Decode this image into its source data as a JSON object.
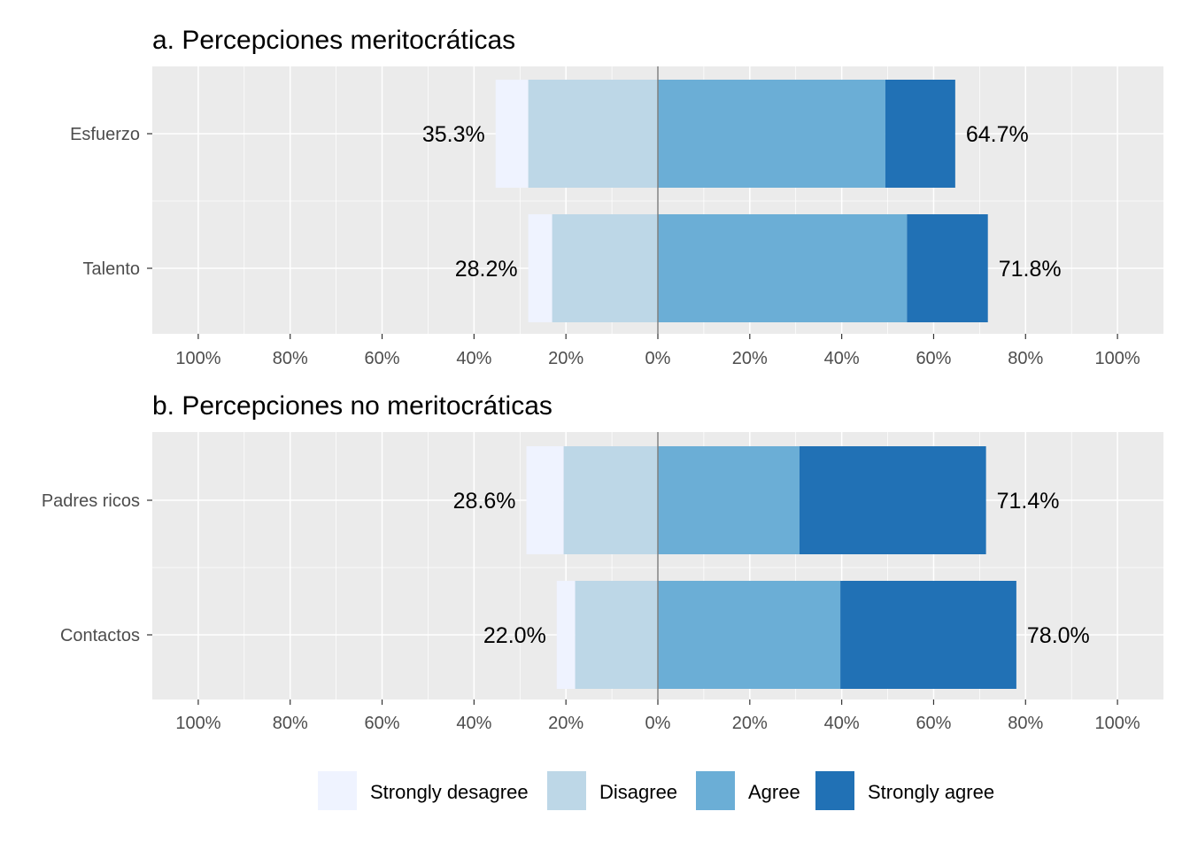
{
  "chart_data": [
    {
      "type": "bar",
      "orientation": "horizontal-diverging",
      "title": "a. Percepciones meritocráticas",
      "categories": [
        "Esfuerzo",
        "Talento"
      ],
      "xlim": [
        -110,
        110
      ],
      "x_ticks": [
        "100%",
        "80%",
        "60%",
        "40%",
        "20%",
        "0%",
        "20%",
        "40%",
        "60%",
        "80%",
        "100%"
      ],
      "series": [
        {
          "name": "Strongly desagree",
          "values": [
            7.1,
            5.2
          ]
        },
        {
          "name": "Disagree",
          "values": [
            28.2,
            23.0
          ]
        },
        {
          "name": "Agree",
          "values": [
            49.5,
            54.2
          ]
        },
        {
          "name": "Strongly agree",
          "values": [
            15.2,
            17.6
          ]
        }
      ],
      "negative_totals": [
        "35.3%",
        "28.2%"
      ],
      "positive_totals": [
        "64.7%",
        "71.8%"
      ]
    },
    {
      "type": "bar",
      "orientation": "horizontal-diverging",
      "title": "b. Percepciones no meritocráticas",
      "categories": [
        "Padres ricos",
        "Contactos"
      ],
      "xlim": [
        -110,
        110
      ],
      "x_ticks": [
        "100%",
        "80%",
        "60%",
        "40%",
        "20%",
        "0%",
        "20%",
        "40%",
        "60%",
        "80%",
        "100%"
      ],
      "series": [
        {
          "name": "Strongly desagree",
          "values": [
            8.1,
            4.0
          ]
        },
        {
          "name": "Disagree",
          "values": [
            20.5,
            18.0
          ]
        },
        {
          "name": "Agree",
          "values": [
            30.8,
            39.7
          ]
        },
        {
          "name": "Strongly agree",
          "values": [
            40.6,
            38.3
          ]
        }
      ],
      "negative_totals": [
        "28.6%",
        "22.0%"
      ],
      "positive_totals": [
        "71.4%",
        "78.0%"
      ]
    }
  ],
  "legend": {
    "position": "bottom",
    "items": [
      {
        "label": "Strongly desagree",
        "color": "#eff3ff"
      },
      {
        "label": "Disagree",
        "color": "#bdd7e7"
      },
      {
        "label": "Agree",
        "color": "#6baed6"
      },
      {
        "label": "Strongly agree",
        "color": "#2171b5"
      }
    ]
  },
  "colors": {
    "panel_bg": "#ebebeb",
    "grid": "#ffffff",
    "zero_line": "#808080"
  }
}
